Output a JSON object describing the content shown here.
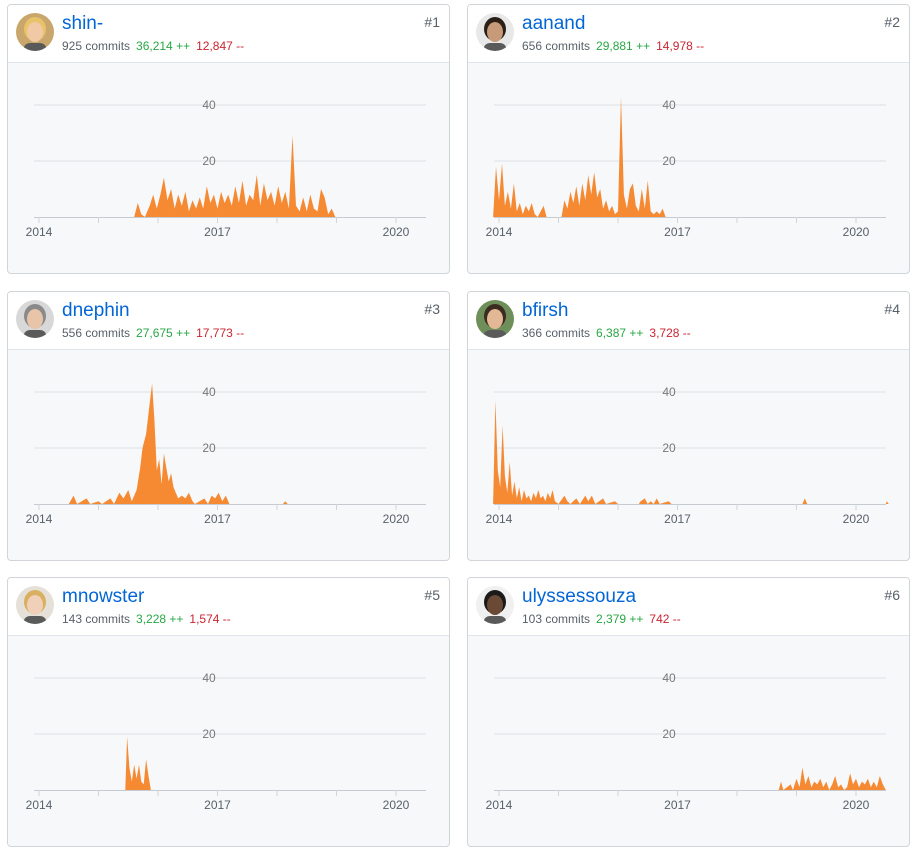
{
  "contributors": [
    {
      "rank": "#1",
      "username": "shin-",
      "commits": "925 commits",
      "additions": "36,214 ++",
      "deletions": "12,847 --",
      "avatar_icon": "avatar-blonde-person-icon"
    },
    {
      "rank": "#2",
      "username": "aanand",
      "commits": "656 commits",
      "additions": "29,881 ++",
      "deletions": "14,978 --",
      "avatar_icon": "avatar-bearded-man-icon"
    },
    {
      "rank": "#3",
      "username": "dnephin",
      "commits": "556 commits",
      "additions": "27,675 ++",
      "deletions": "17,773 --",
      "avatar_icon": "avatar-person-icon"
    },
    {
      "rank": "#4",
      "username": "bfirsh",
      "commits": "366 commits",
      "additions": "6,387 ++",
      "deletions": "3,728 --",
      "avatar_icon": "avatar-person-outdoor-icon"
    },
    {
      "rank": "#5",
      "username": "mnowster",
      "commits": "143 commits",
      "additions": "3,228 ++",
      "deletions": "1,574 --",
      "avatar_icon": "avatar-person-glasses-icon"
    },
    {
      "rank": "#6",
      "username": "ulyssessouza",
      "commits": "103 commits",
      "additions": "2,379 ++",
      "deletions": "742 --",
      "avatar_icon": "avatar-person-dark-icon"
    }
  ],
  "colors": {
    "area": "#f68a33",
    "link": "#0366d6",
    "additions": "#28a745",
    "deletions": "#cb2431"
  },
  "chart_data": [
    {
      "type": "area",
      "series_of": "shin-",
      "xlim": [
        2014.0,
        2021.0
      ],
      "ylim": [
        0,
        45
      ],
      "yticks": [
        "20",
        "40"
      ],
      "xticks": [
        "2014",
        "2017",
        "2020"
      ],
      "points": [
        [
          2015.6,
          0
        ],
        [
          2015.66,
          5
        ],
        [
          2015.72,
          1
        ],
        [
          2015.78,
          0
        ],
        [
          2015.86,
          4
        ],
        [
          2015.92,
          8
        ],
        [
          2015.98,
          3
        ],
        [
          2016.04,
          8
        ],
        [
          2016.1,
          14
        ],
        [
          2016.16,
          6
        ],
        [
          2016.22,
          10
        ],
        [
          2016.28,
          3
        ],
        [
          2016.34,
          8
        ],
        [
          2016.4,
          4
        ],
        [
          2016.46,
          9
        ],
        [
          2016.52,
          2
        ],
        [
          2016.58,
          6
        ],
        [
          2016.64,
          3
        ],
        [
          2016.7,
          7
        ],
        [
          2016.76,
          3
        ],
        [
          2016.82,
          11
        ],
        [
          2016.88,
          5
        ],
        [
          2016.94,
          8
        ],
        [
          2017.0,
          3
        ],
        [
          2017.06,
          9
        ],
        [
          2017.12,
          5
        ],
        [
          2017.18,
          8
        ],
        [
          2017.24,
          4
        ],
        [
          2017.3,
          11
        ],
        [
          2017.36,
          5
        ],
        [
          2017.42,
          13
        ],
        [
          2017.48,
          4
        ],
        [
          2017.54,
          8
        ],
        [
          2017.6,
          6
        ],
        [
          2017.66,
          15
        ],
        [
          2017.72,
          4
        ],
        [
          2017.78,
          12
        ],
        [
          2017.84,
          6
        ],
        [
          2017.9,
          9
        ],
        [
          2017.96,
          4
        ],
        [
          2018.02,
          11
        ],
        [
          2018.08,
          5
        ],
        [
          2018.14,
          9
        ],
        [
          2018.2,
          3
        ],
        [
          2018.26,
          29
        ],
        [
          2018.32,
          4
        ],
        [
          2018.38,
          2
        ],
        [
          2018.44,
          7
        ],
        [
          2018.5,
          2
        ],
        [
          2018.56,
          8
        ],
        [
          2018.62,
          3
        ],
        [
          2018.68,
          2
        ],
        [
          2018.74,
          10
        ],
        [
          2018.8,
          7
        ],
        [
          2018.86,
          1
        ],
        [
          2018.92,
          3
        ],
        [
          2018.98,
          0
        ]
      ]
    },
    {
      "type": "area",
      "series_of": "aanand",
      "xlim": [
        2014.0,
        2021.0
      ],
      "ylim": [
        0,
        45
      ],
      "yticks": [
        "20",
        "40"
      ],
      "xticks": [
        "2014",
        "2017",
        "2020"
      ],
      "points": [
        [
          2013.9,
          0
        ],
        [
          2013.95,
          18
        ],
        [
          2014.0,
          6
        ],
        [
          2014.05,
          19
        ],
        [
          2014.1,
          4
        ],
        [
          2014.15,
          9
        ],
        [
          2014.2,
          3
        ],
        [
          2014.25,
          12
        ],
        [
          2014.3,
          2
        ],
        [
          2014.35,
          5
        ],
        [
          2014.4,
          1
        ],
        [
          2014.45,
          4
        ],
        [
          2014.5,
          2
        ],
        [
          2014.55,
          5
        ],
        [
          2014.6,
          1
        ],
        [
          2014.65,
          0
        ],
        [
          2014.75,
          4
        ],
        [
          2014.8,
          0
        ],
        [
          2015.05,
          0
        ],
        [
          2015.1,
          6
        ],
        [
          2015.15,
          3
        ],
        [
          2015.2,
          9
        ],
        [
          2015.25,
          5
        ],
        [
          2015.3,
          11
        ],
        [
          2015.35,
          4
        ],
        [
          2015.4,
          12
        ],
        [
          2015.45,
          6
        ],
        [
          2015.5,
          15
        ],
        [
          2015.55,
          8
        ],
        [
          2015.6,
          16
        ],
        [
          2015.65,
          7
        ],
        [
          2015.7,
          10
        ],
        [
          2015.75,
          3
        ],
        [
          2015.8,
          6
        ],
        [
          2015.85,
          2
        ],
        [
          2015.9,
          4
        ],
        [
          2015.95,
          1
        ],
        [
          2016.0,
          2
        ],
        [
          2016.05,
          43
        ],
        [
          2016.1,
          8
        ],
        [
          2016.15,
          3
        ],
        [
          2016.2,
          10
        ],
        [
          2016.25,
          12
        ],
        [
          2016.3,
          4
        ],
        [
          2016.35,
          2
        ],
        [
          2016.4,
          10
        ],
        [
          2016.45,
          3
        ],
        [
          2016.5,
          13
        ],
        [
          2016.55,
          2
        ],
        [
          2016.6,
          1
        ],
        [
          2016.65,
          2
        ],
        [
          2016.7,
          1
        ],
        [
          2016.75,
          3
        ],
        [
          2016.8,
          0
        ]
      ]
    },
    {
      "type": "area",
      "series_of": "dnephin",
      "xlim": [
        2014.0,
        2021.0
      ],
      "ylim": [
        0,
        45
      ],
      "yticks": [
        "20",
        "40"
      ],
      "xticks": [
        "2014",
        "2017",
        "2020"
      ],
      "points": [
        [
          2014.5,
          0
        ],
        [
          2014.58,
          3
        ],
        [
          2014.64,
          0
        ],
        [
          2014.8,
          2
        ],
        [
          2014.86,
          0
        ],
        [
          2015.0,
          1
        ],
        [
          2015.06,
          0
        ],
        [
          2015.2,
          2
        ],
        [
          2015.26,
          0
        ],
        [
          2015.35,
          4
        ],
        [
          2015.42,
          2
        ],
        [
          2015.5,
          5
        ],
        [
          2015.56,
          1
        ],
        [
          2015.64,
          5
        ],
        [
          2015.7,
          13
        ],
        [
          2015.74,
          20
        ],
        [
          2015.8,
          25
        ],
        [
          2015.86,
          36
        ],
        [
          2015.9,
          43
        ],
        [
          2015.94,
          30
        ],
        [
          2015.98,
          12
        ],
        [
          2016.02,
          16
        ],
        [
          2016.06,
          7
        ],
        [
          2016.1,
          18
        ],
        [
          2016.14,
          13
        ],
        [
          2016.18,
          8
        ],
        [
          2016.22,
          11
        ],
        [
          2016.26,
          6
        ],
        [
          2016.3,
          4
        ],
        [
          2016.34,
          2
        ],
        [
          2016.4,
          3
        ],
        [
          2016.46,
          2
        ],
        [
          2016.52,
          4
        ],
        [
          2016.58,
          1
        ],
        [
          2016.62,
          0
        ],
        [
          2016.78,
          2
        ],
        [
          2016.84,
          0
        ],
        [
          2016.9,
          3
        ],
        [
          2016.96,
          2
        ],
        [
          2017.02,
          4
        ],
        [
          2017.08,
          1
        ],
        [
          2017.14,
          3
        ],
        [
          2017.2,
          0
        ],
        [
          2018.1,
          0
        ],
        [
          2018.14,
          1
        ],
        [
          2018.18,
          0
        ]
      ]
    },
    {
      "type": "area",
      "series_of": "bfirsh",
      "xlim": [
        2014.0,
        2021.0
      ],
      "ylim": [
        0,
        45
      ],
      "yticks": [
        "20",
        "40"
      ],
      "xticks": [
        "2014",
        "2017",
        "2020"
      ],
      "points": [
        [
          2013.9,
          0
        ],
        [
          2013.94,
          37
        ],
        [
          2013.98,
          12
        ],
        [
          2014.02,
          6
        ],
        [
          2014.06,
          28
        ],
        [
          2014.1,
          10
        ],
        [
          2014.14,
          4
        ],
        [
          2014.18,
          15
        ],
        [
          2014.22,
          3
        ],
        [
          2014.26,
          8
        ],
        [
          2014.3,
          2
        ],
        [
          2014.34,
          6
        ],
        [
          2014.38,
          1
        ],
        [
          2014.42,
          5
        ],
        [
          2014.46,
          2
        ],
        [
          2014.5,
          3
        ],
        [
          2014.54,
          1
        ],
        [
          2014.58,
          4
        ],
        [
          2014.62,
          2
        ],
        [
          2014.66,
          5
        ],
        [
          2014.7,
          2
        ],
        [
          2014.74,
          3
        ],
        [
          2014.78,
          1
        ],
        [
          2014.82,
          4
        ],
        [
          2014.86,
          2
        ],
        [
          2014.9,
          5
        ],
        [
          2014.94,
          1
        ],
        [
          2015.0,
          0
        ],
        [
          2015.1,
          3
        ],
        [
          2015.15,
          1
        ],
        [
          2015.2,
          0
        ],
        [
          2015.3,
          2
        ],
        [
          2015.36,
          0
        ],
        [
          2015.45,
          3
        ],
        [
          2015.5,
          1
        ],
        [
          2015.56,
          3
        ],
        [
          2015.62,
          0
        ],
        [
          2015.75,
          2
        ],
        [
          2015.8,
          0
        ],
        [
          2015.95,
          1
        ],
        [
          2016.0,
          0
        ],
        [
          2016.35,
          0
        ],
        [
          2016.38,
          1
        ],
        [
          2016.45,
          2
        ],
        [
          2016.5,
          0
        ],
        [
          2016.55,
          1
        ],
        [
          2016.6,
          0
        ],
        [
          2016.65,
          2
        ],
        [
          2016.7,
          0
        ],
        [
          2016.85,
          1
        ],
        [
          2016.9,
          0
        ],
        [
          2019.1,
          0
        ],
        [
          2019.14,
          2
        ],
        [
          2019.18,
          0
        ],
        [
          2020.5,
          0
        ],
        [
          2020.52,
          1
        ],
        [
          2020.55,
          0
        ]
      ]
    },
    {
      "type": "area",
      "series_of": "mnowster",
      "xlim": [
        2014.0,
        2021.0
      ],
      "ylim": [
        0,
        45
      ],
      "yticks": [
        "20",
        "40"
      ],
      "xticks": [
        "2014",
        "2017",
        "2020"
      ],
      "points": [
        [
          2015.45,
          0
        ],
        [
          2015.48,
          19
        ],
        [
          2015.52,
          8
        ],
        [
          2015.56,
          3
        ],
        [
          2015.6,
          9
        ],
        [
          2015.64,
          4
        ],
        [
          2015.68,
          9
        ],
        [
          2015.72,
          3
        ],
        [
          2015.76,
          2
        ],
        [
          2015.8,
          11
        ],
        [
          2015.84,
          5
        ],
        [
          2015.88,
          0
        ]
      ]
    },
    {
      "type": "area",
      "series_of": "ulyssessouza",
      "xlim": [
        2014.0,
        2021.0
      ],
      "ylim": [
        0,
        45
      ],
      "yticks": [
        "20",
        "40"
      ],
      "xticks": [
        "2014",
        "2017",
        "2020"
      ],
      "points": [
        [
          2018.7,
          0
        ],
        [
          2018.74,
          3
        ],
        [
          2018.78,
          0
        ],
        [
          2018.9,
          2
        ],
        [
          2018.94,
          0
        ],
        [
          2019.0,
          4
        ],
        [
          2019.05,
          1
        ],
        [
          2019.1,
          8
        ],
        [
          2019.15,
          2
        ],
        [
          2019.2,
          5
        ],
        [
          2019.25,
          1
        ],
        [
          2019.3,
          3
        ],
        [
          2019.35,
          2
        ],
        [
          2019.4,
          4
        ],
        [
          2019.45,
          1
        ],
        [
          2019.5,
          3
        ],
        [
          2019.55,
          0
        ],
        [
          2019.6,
          2
        ],
        [
          2019.65,
          5
        ],
        [
          2019.7,
          1
        ],
        [
          2019.75,
          2
        ],
        [
          2019.8,
          0
        ],
        [
          2019.85,
          1
        ],
        [
          2019.9,
          6
        ],
        [
          2019.95,
          2
        ],
        [
          2020.0,
          4
        ],
        [
          2020.05,
          1
        ],
        [
          2020.1,
          3
        ],
        [
          2020.15,
          2
        ],
        [
          2020.2,
          4
        ],
        [
          2020.25,
          1
        ],
        [
          2020.3,
          3
        ],
        [
          2020.35,
          1
        ],
        [
          2020.4,
          5
        ],
        [
          2020.45,
          2
        ],
        [
          2020.5,
          0
        ]
      ]
    }
  ]
}
